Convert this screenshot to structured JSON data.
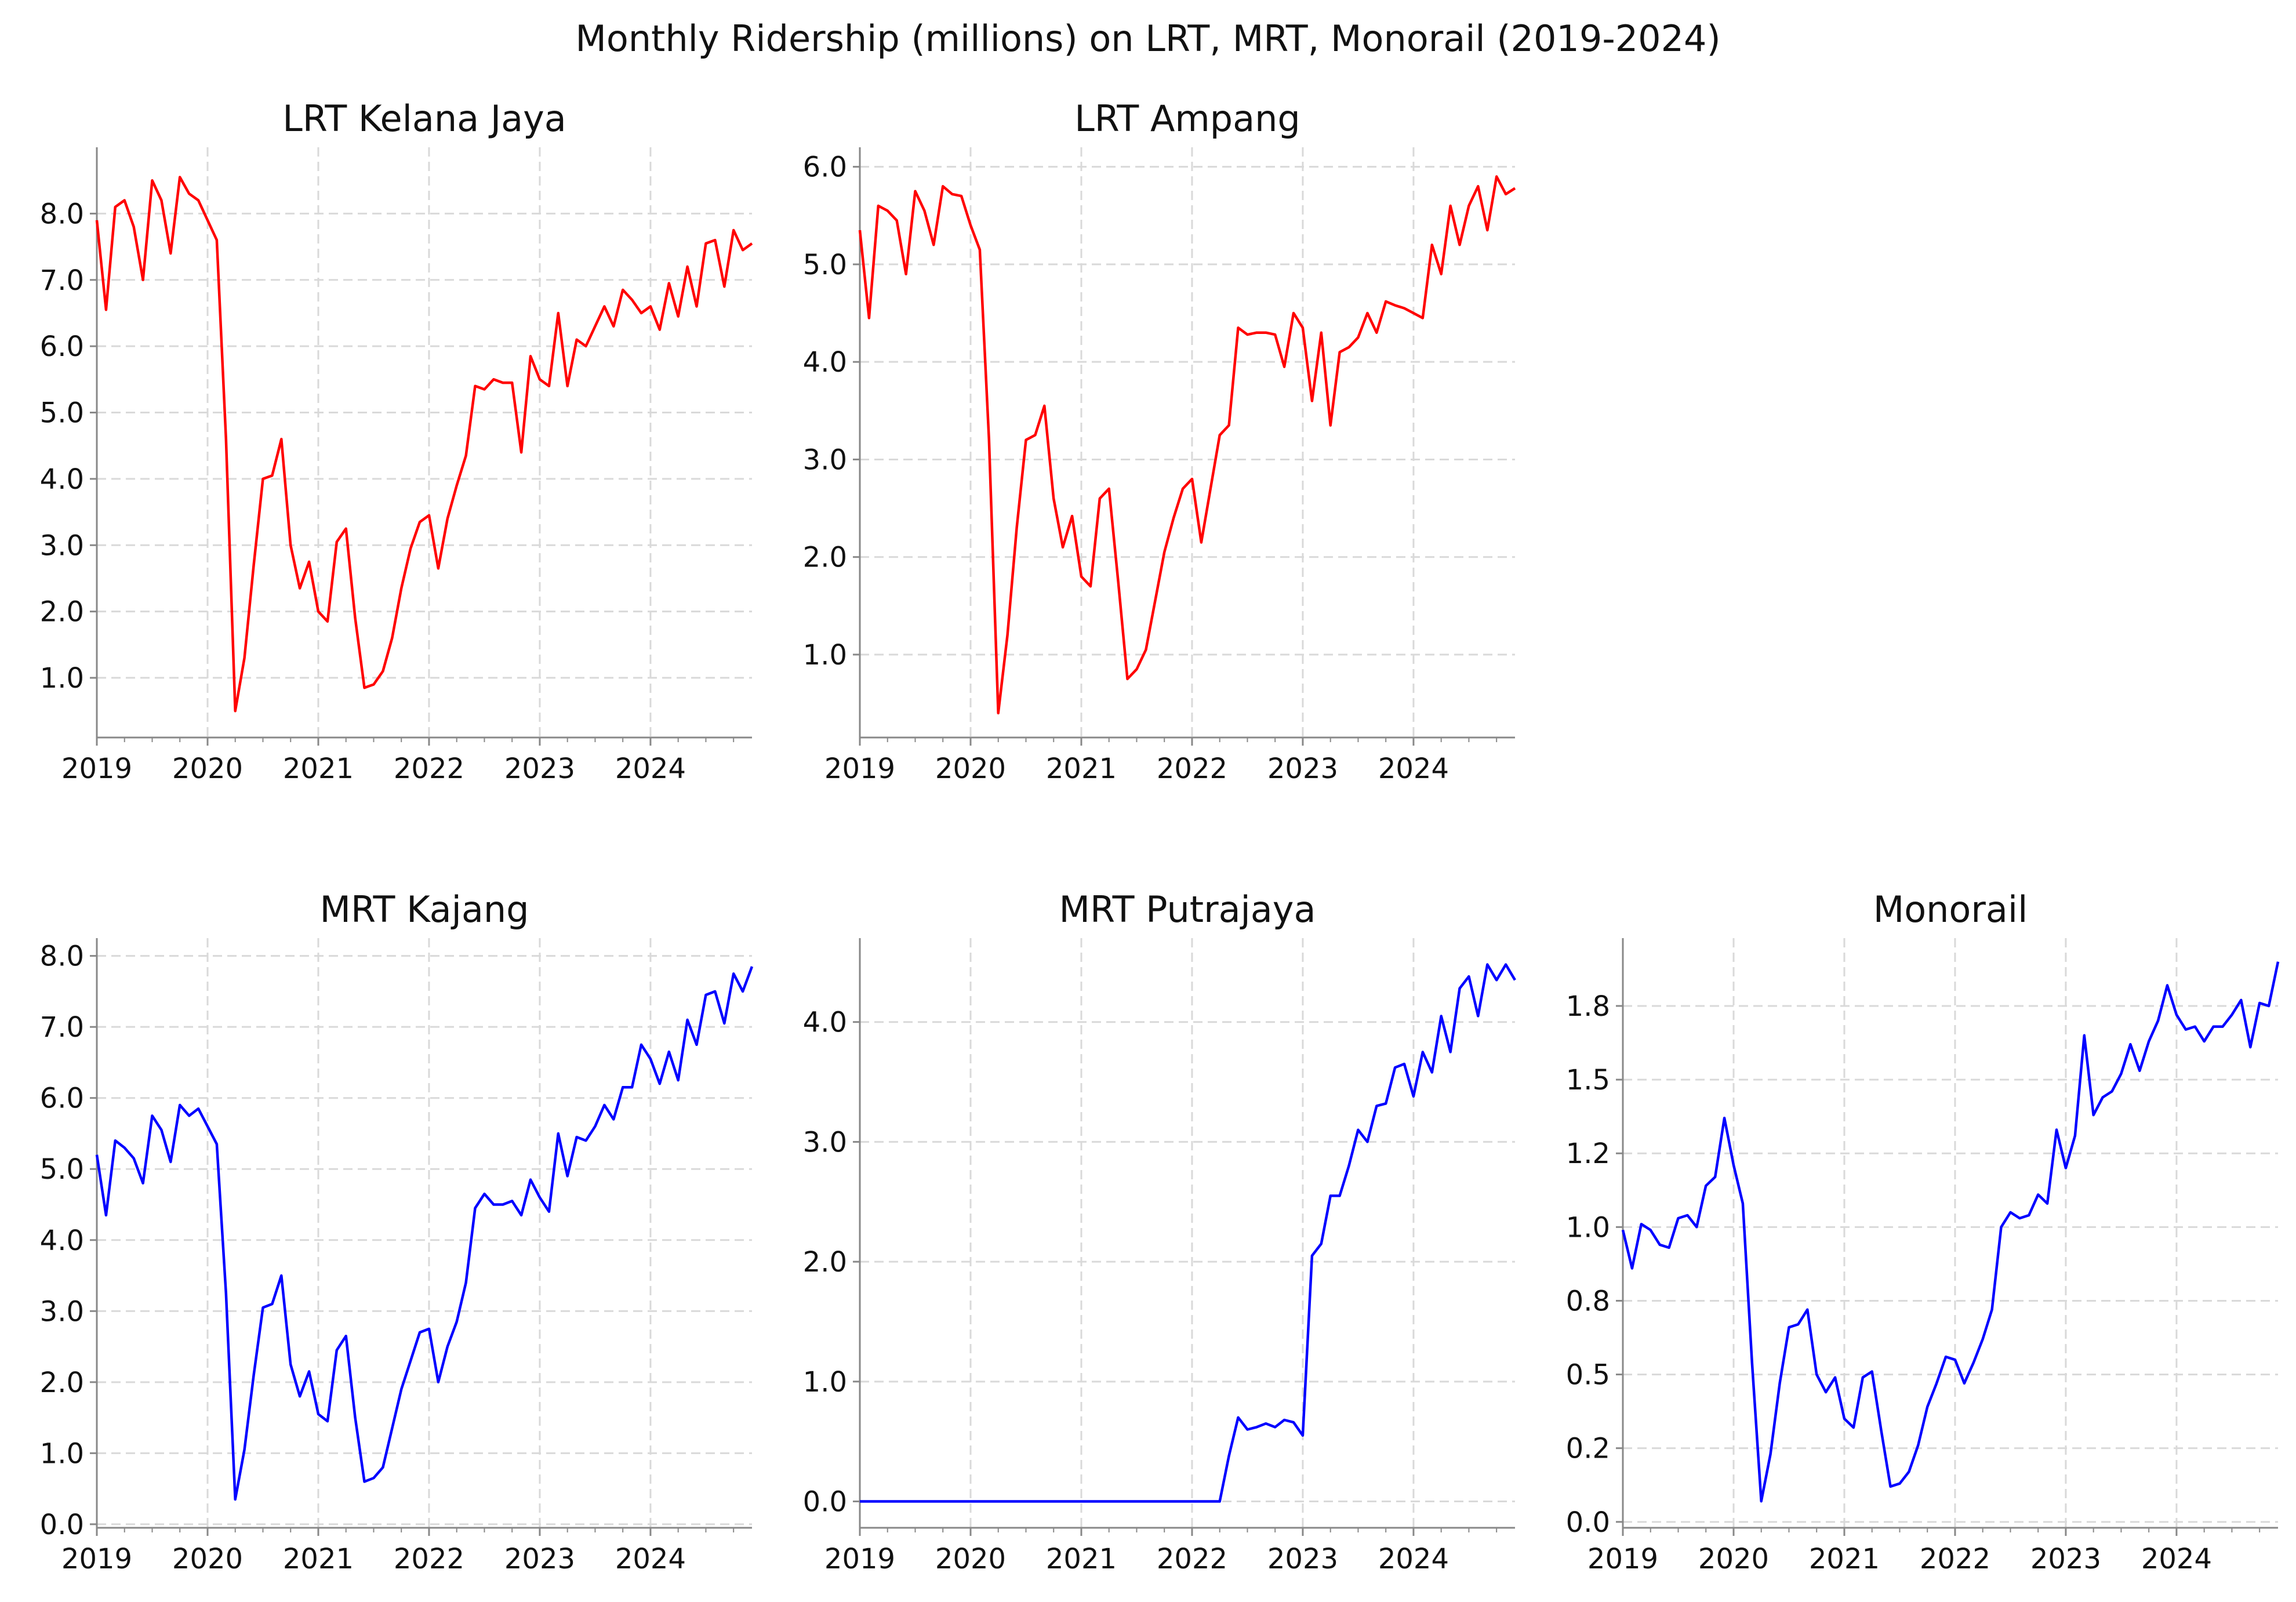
{
  "figure": {
    "title": "Monthly Ridership (millions) on LRT, MRT, Monorail (2019-2024)"
  },
  "colors": {
    "lrt": "#ff0000",
    "mrt": "#0000ff",
    "grid": "#d9d9d9",
    "axis": "#888888"
  },
  "chart_data": [
    {
      "type": "line",
      "title": "LRT Kelana Jaya",
      "x_start": "2019-01",
      "x_freq": "monthly",
      "x_ticks": [
        "2019",
        "2020",
        "2021",
        "2022",
        "2023",
        "2024"
      ],
      "y_ticks": [
        1.0,
        2.0,
        3.0,
        4.0,
        5.0,
        6.0,
        7.0,
        8.0
      ],
      "y_tick_labels": [
        "1.0",
        "2.0",
        "3.0",
        "4.0",
        "5.0",
        "6.0",
        "7.0",
        "8.0"
      ],
      "ylim": [
        0.1,
        9.0
      ],
      "grid": true,
      "color": "#ff0000",
      "values": [
        7.9,
        6.55,
        8.1,
        8.2,
        7.8,
        7.0,
        8.5,
        8.2,
        7.4,
        8.55,
        8.3,
        8.2,
        7.9,
        7.6,
        4.6,
        0.5,
        1.3,
        2.7,
        4.0,
        4.05,
        4.6,
        3.0,
        2.35,
        2.75,
        2.0,
        1.85,
        3.05,
        3.25,
        1.9,
        0.85,
        0.9,
        1.1,
        1.6,
        2.35,
        2.95,
        3.35,
        3.45,
        2.65,
        3.4,
        3.9,
        4.35,
        5.4,
        5.35,
        5.5,
        5.45,
        5.45,
        4.4,
        5.85,
        5.5,
        5.4,
        6.5,
        5.4,
        6.1,
        6.0,
        6.3,
        6.6,
        6.3,
        6.85,
        6.7,
        6.5,
        6.6,
        6.25,
        6.95,
        6.45,
        7.2,
        6.6,
        7.55,
        7.6,
        6.9,
        7.75,
        7.45,
        7.55
      ]
    },
    {
      "type": "line",
      "title": "LRT Ampang",
      "x_start": "2019-01",
      "x_freq": "monthly",
      "x_ticks": [
        "2019",
        "2020",
        "2021",
        "2022",
        "2023",
        "2024"
      ],
      "y_ticks": [
        1.0,
        2.0,
        3.0,
        4.0,
        5.0,
        6.0
      ],
      "y_tick_labels": [
        "1.0",
        "2.0",
        "3.0",
        "4.0",
        "5.0",
        "6.0"
      ],
      "ylim": [
        0.15,
        6.2
      ],
      "grid": true,
      "color": "#ff0000",
      "values": [
        5.35,
        4.45,
        5.6,
        5.55,
        5.45,
        4.9,
        5.75,
        5.55,
        5.2,
        5.8,
        5.72,
        5.7,
        5.4,
        5.15,
        3.2,
        0.4,
        1.2,
        2.3,
        3.2,
        3.25,
        3.55,
        2.6,
        2.1,
        2.42,
        1.8,
        1.7,
        2.6,
        2.7,
        1.75,
        0.75,
        0.85,
        1.05,
        1.55,
        2.05,
        2.4,
        2.7,
        2.8,
        2.15,
        2.7,
        3.25,
        3.35,
        4.35,
        4.28,
        4.3,
        4.3,
        4.28,
        3.95,
        4.5,
        4.35,
        3.6,
        4.3,
        3.35,
        4.1,
        4.15,
        4.25,
        4.5,
        4.3,
        4.62,
        4.58,
        4.55,
        4.5,
        4.45,
        5.2,
        4.9,
        5.6,
        5.2,
        5.6,
        5.8,
        5.35,
        5.9,
        5.72,
        5.78
      ]
    },
    {
      "type": "line",
      "title": "MRT Kajang",
      "x_start": "2019-01",
      "x_freq": "monthly",
      "x_ticks": [
        "2019",
        "2020",
        "2021",
        "2022",
        "2023",
        "2024"
      ],
      "y_ticks": [
        0.0,
        1.0,
        2.0,
        3.0,
        4.0,
        5.0,
        6.0,
        7.0,
        8.0
      ],
      "y_tick_labels": [
        "0.0",
        "1.0",
        "2.0",
        "3.0",
        "4.0",
        "5.0",
        "6.0",
        "7.0",
        "8.0"
      ],
      "ylim": [
        -0.05,
        8.25
      ],
      "grid": true,
      "color": "#0000ff",
      "values": [
        5.2,
        4.35,
        5.4,
        5.3,
        5.15,
        4.8,
        5.75,
        5.55,
        5.1,
        5.9,
        5.75,
        5.85,
        5.6,
        5.35,
        3.25,
        0.35,
        1.05,
        2.1,
        3.05,
        3.1,
        3.5,
        2.25,
        1.8,
        2.15,
        1.55,
        1.45,
        2.45,
        2.65,
        1.5,
        0.6,
        0.65,
        0.8,
        1.35,
        1.9,
        2.3,
        2.7,
        2.75,
        2.0,
        2.5,
        2.85,
        3.4,
        4.45,
        4.65,
        4.5,
        4.5,
        4.55,
        4.35,
        4.85,
        4.6,
        4.4,
        5.5,
        4.9,
        5.45,
        5.4,
        5.6,
        5.9,
        5.7,
        6.15,
        6.15,
        6.75,
        6.55,
        6.2,
        6.65,
        6.25,
        7.1,
        6.75,
        7.45,
        7.5,
        7.05,
        7.75,
        7.5,
        7.85
      ]
    },
    {
      "type": "line",
      "title": "MRT Putrajaya",
      "x_start": "2019-01",
      "x_freq": "monthly",
      "x_ticks": [
        "2019",
        "2020",
        "2021",
        "2022",
        "2023",
        "2024"
      ],
      "y_ticks": [
        0.0,
        1.0,
        2.0,
        3.0,
        4.0
      ],
      "y_tick_labels": [
        "0.0",
        "1.0",
        "2.0",
        "3.0",
        "4.0"
      ],
      "ylim": [
        -0.22,
        4.7
      ],
      "grid": true,
      "color": "#0000ff",
      "values": [
        0,
        0,
        0,
        0,
        0,
        0,
        0,
        0,
        0,
        0,
        0,
        0,
        0,
        0,
        0,
        0,
        0,
        0,
        0,
        0,
        0,
        0,
        0,
        0,
        0,
        0,
        0,
        0,
        0,
        0,
        0,
        0,
        0,
        0,
        0,
        0,
        0,
        0,
        0,
        0,
        0.38,
        0.7,
        0.6,
        0.62,
        0.65,
        0.62,
        0.68,
        0.66,
        0.55,
        2.05,
        2.15,
        2.55,
        2.55,
        2.8,
        3.1,
        3.0,
        3.3,
        3.32,
        3.62,
        3.65,
        3.38,
        3.75,
        3.58,
        4.05,
        3.75,
        4.28,
        4.38,
        4.05,
        4.48,
        4.35,
        4.48,
        4.35
      ]
    },
    {
      "type": "line",
      "title": "Monorail",
      "x_start": "2019-01",
      "x_freq": "monthly",
      "x_ticks": [
        "2019",
        "2020",
        "2021",
        "2022",
        "2023",
        "2024"
      ],
      "y_ticks": [
        0.0,
        0.25,
        0.5,
        0.75,
        1.0,
        1.25,
        1.5,
        1.75
      ],
      "y_tick_labels": [
        "0.0",
        "0.2",
        "0.5",
        "0.8",
        "1.0",
        "1.2",
        "1.5",
        "1.8"
      ],
      "ylim": [
        -0.02,
        1.98
      ],
      "grid": true,
      "color": "#0000ff",
      "values": [
        0.99,
        0.86,
        1.01,
        0.99,
        0.94,
        0.93,
        1.03,
        1.04,
        1.0,
        1.14,
        1.17,
        1.37,
        1.21,
        1.08,
        0.54,
        0.07,
        0.23,
        0.47,
        0.66,
        0.67,
        0.72,
        0.5,
        0.44,
        0.49,
        0.35,
        0.32,
        0.49,
        0.51,
        0.31,
        0.12,
        0.13,
        0.17,
        0.26,
        0.39,
        0.47,
        0.56,
        0.55,
        0.47,
        0.54,
        0.62,
        0.72,
        1.0,
        1.05,
        1.03,
        1.04,
        1.11,
        1.08,
        1.33,
        1.2,
        1.31,
        1.65,
        1.38,
        1.44,
        1.46,
        1.52,
        1.62,
        1.53,
        1.63,
        1.7,
        1.82,
        1.72,
        1.67,
        1.68,
        1.63,
        1.68,
        1.68,
        1.72,
        1.77,
        1.61,
        1.76,
        1.75,
        1.9
      ]
    }
  ]
}
